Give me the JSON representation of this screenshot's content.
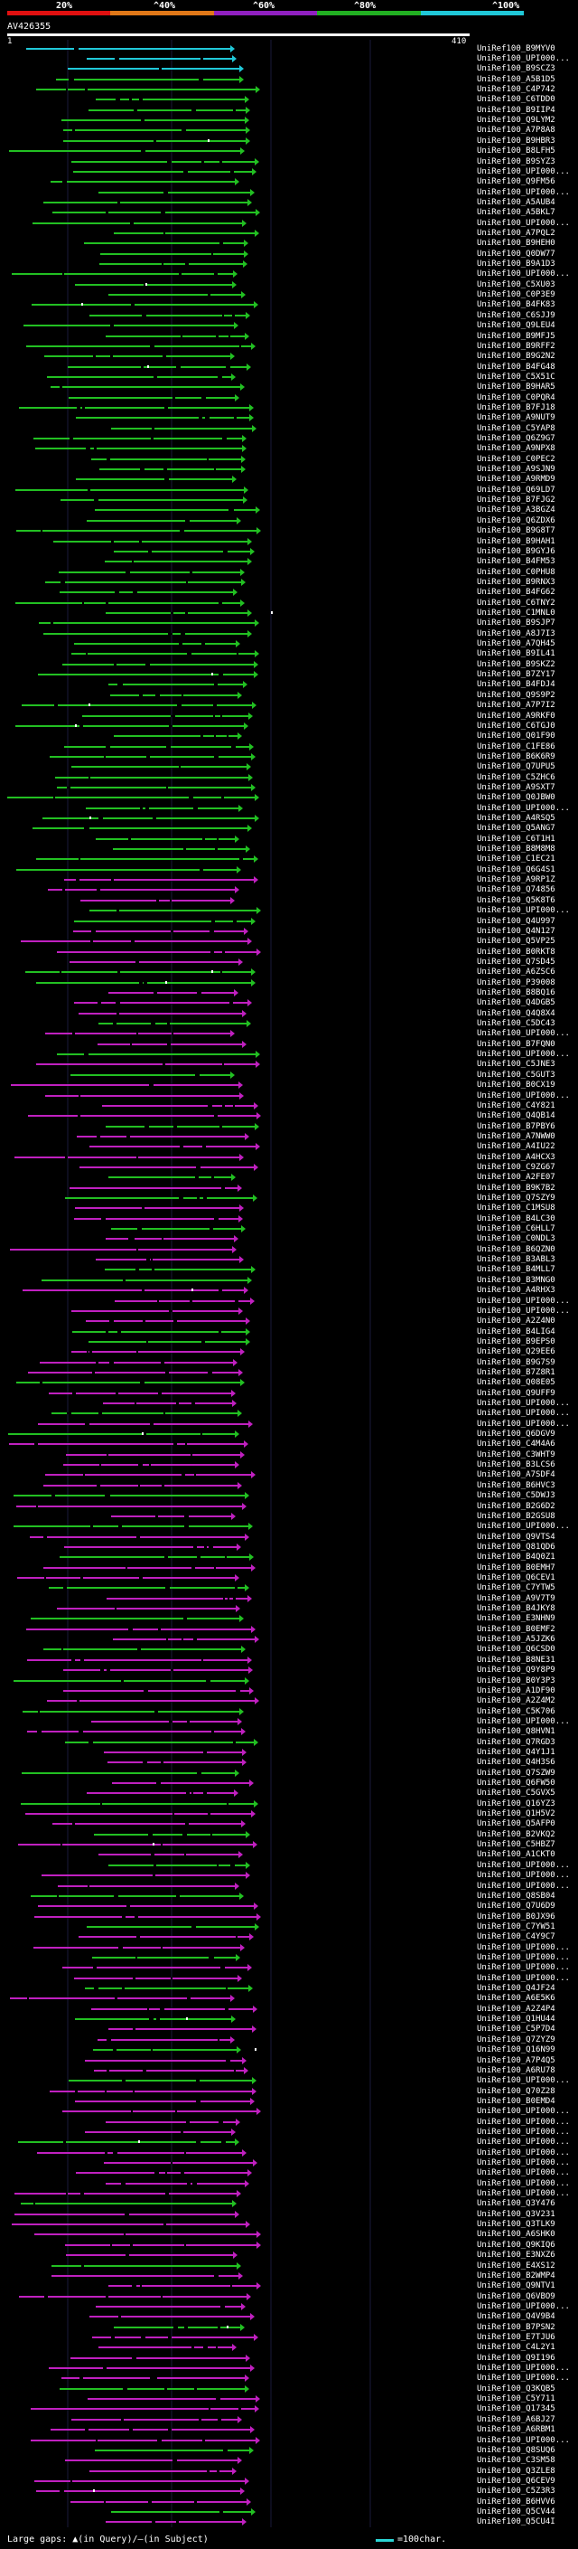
{
  "scale": {
    "labels": [
      "20%",
      "^40%",
      "^60%",
      "^80%",
      "^100%"
    ],
    "colors": [
      "#e01010",
      "#e07818",
      "#9020c0",
      "#22b022",
      "#20c8d8"
    ]
  },
  "query": {
    "id": "AV426355",
    "start": "1",
    "end": "410"
  },
  "colors": {
    "cyan": "#20c8d8",
    "green": "#22c022",
    "magenta": "#c020c0",
    "gap": "#000000"
  },
  "hits": [
    "UniRef100_B9MYV0",
    "UniRef100_UPI000...",
    "UniRef100_B9SCZ3",
    "UniRef100_A5B1D5",
    "UniRef100_C4P742",
    "UniRef100_C6TDD0",
    "UniRef100_B9IIP4",
    "UniRef100_Q9LYM2",
    "UniRef100_A7P8A8",
    "UniRef100_B9HBR3",
    "UniRef100_B8LFH5",
    "UniRef100_B9SYZ3",
    "UniRef100_UPI000...",
    "UniRef100_Q9FM56",
    "UniRef100_UPI000...",
    "UniRef100_A5AUB4",
    "UniRef100_A5BKL7",
    "UniRef100_UPI000...",
    "UniRef100_A7PQL2",
    "UniRef100_B9HEH0",
    "UniRef100_Q0DW77",
    "UniRef100_B9A1D3",
    "UniRef100_UPI000...",
    "UniRef100_C5XU03",
    "UniRef100_C0P3E9",
    "UniRef100_B4FK83",
    "UniRef100_C6SJJ9",
    "UniRef100_Q9LEU4",
    "UniRef100_B9MFJ5",
    "UniRef100_B9RFF2",
    "UniRef100_B9G2N2",
    "UniRef100_B4FG48",
    "UniRef100_C5X51C",
    "UniRef100_B9HAR5",
    "UniRef100_C0PQR4",
    "UniRef100_B7FJ18",
    "UniRef100_A9NUT9",
    "UniRef100_C5YAP8",
    "UniRef100_Q6Z9G7",
    "UniRef100_A9NPX8",
    "UniRef100_C0PEC2",
    "UniRef100_A9SJN9",
    "UniRef100_A9RMD9",
    "UniRef100_Q69LD7",
    "UniRef100_B7FJG2",
    "UniRef100_A3BGZ4",
    "UniRef100_Q6ZDX6",
    "UniRef100_B9G8T7",
    "UniRef100_B9HAH1",
    "UniRef100_B9GYJ6",
    "UniRef100_B4FM53",
    "UniRef100_C0PHU8",
    "UniRef100_B9RNX3",
    "UniRef100_B4FG62",
    "UniRef100_C6TNY2",
    "UniRef100_C1MNL0",
    "UniRef100_B9SJP7",
    "UniRef100_A8J7I3",
    "UniRef100_A7QH45",
    "UniRef100_B9IL41",
    "UniRef100_B9SKZ2",
    "UniRef100_B7ZY17",
    "UniRef100_B4FDJ4",
    "UniRef100_Q9S9P2",
    "UniRef100_A7P7I2",
    "UniRef100_A9RKF0",
    "UniRef100_C6TGJ0",
    "UniRef100_Q01F90",
    "UniRef100_C1FE86",
    "UniRef100_B6K6R9",
    "UniRef100_Q7UPU5",
    "UniRef100_C5ZHC6",
    "UniRef100_A9SXT7",
    "UniRef100_Q0JBW0",
    "UniRef100_UPI000...",
    "UniRef100_A4RSQ5",
    "UniRef100_Q5ANG7",
    "UniRef100_C6T1H1",
    "UniRef100_B8M8M8",
    "UniRef100_C1EC21",
    "UniRef100_Q6G4S1",
    "UniRef100_A9RP1Z",
    "UniRef100_Q74856",
    "UniRef100_Q5K8T6",
    "UniRef100_UPI000...",
    "UniRef100_Q4U997",
    "UniRef100_Q4N127",
    "UniRef100_Q5VP25",
    "UniRef100_B0RKT8",
    "UniRef100_Q7SD45",
    "UniRef100_A6ZSC6",
    "UniRef100_P39008",
    "UniRef100_B8BQ16",
    "UniRef100_Q4DGB5",
    "UniRef100_Q4Q8X4",
    "UniRef100_C5DC43",
    "UniRef100_UPI000...",
    "UniRef100_B7FQN0",
    "UniRef100_UPI000...",
    "UniRef100_C5JNE3",
    "UniRef100_C5GUT3",
    "UniRef100_B0CX19",
    "UniRef100_UPI000...",
    "UniRef100_C4Y821",
    "UniRef100_Q4QB14",
    "UniRef100_B7PBY6",
    "UniRef100_A7NWW0",
    "UniRef100_A4IU22",
    "UniRef100_A4HCX3",
    "UniRef100_C9ZG67",
    "UniRef100_A2FE07",
    "UniRef100_B9K7B2",
    "UniRef100_Q7SZY9",
    "UniRef100_C1MSU8",
    "UniRef100_B4LC30",
    "UniRef100_C6HLL7",
    "UniRef100_C0NDL3",
    "UniRef100_B6QZN0",
    "UniRef100_B3ABL3",
    "UniRef100_B4MLL7",
    "UniRef100_B3MNG0",
    "UniRef100_A4RHX3",
    "UniRef100_UPI000...",
    "UniRef100_UPI000...",
    "UniRef100_A2Z4N0",
    "UniRef100_B4LIG4",
    "UniRef100_B9EPS0",
    "UniRef100_Q29EE6",
    "UniRef100_B9G7S9",
    "UniRef100_B7Z8R1",
    "UniRef100_Q08E05",
    "UniRef100_Q9UFF9",
    "UniRef100_UPI000...",
    "UniRef100_UPI000...",
    "UniRef100_UPI000...",
    "UniRef100_Q6DGV9",
    "UniRef100_C4M4A6",
    "UniRef100_C3WHT9",
    "UniRef100_B3LCS6",
    "UniRef100_A7SDF4",
    "UniRef100_B6HVC3",
    "UniRef100_C5DWJ3",
    "UniRef100_B2G6D2",
    "UniRef100_B2GSU8",
    "UniRef100_UPI000...",
    "UniRef100_Q9VTS4",
    "UniRef100_Q81QD6",
    "UniRef100_B4Q0Z1",
    "UniRef100_B0EMH7",
    "UniRef100_Q6CEV1",
    "UniRef100_C7YTW5",
    "UniRef100_A9V7T9",
    "UniRef100_B4JKY8",
    "UniRef100_E3NHN9",
    "UniRef100_B0EMF2",
    "UniRef100_A5JZK6",
    "UniRef100_Q6CSD0",
    "UniRef100_B8NE31",
    "UniRef100_Q9Y8P9",
    "UniRef100_B0Y3P3",
    "UniRef100_A1DF90",
    "UniRef100_A2Z4M2",
    "UniRef100_C5K706",
    "UniRef100_UPI000...",
    "UniRef100_Q8HVN1",
    "UniRef100_Q7RGD3",
    "UniRef100_Q4Y1J1",
    "UniRef100_Q4H3S6",
    "UniRef100_Q7SZW9",
    "UniRef100_Q6FW50",
    "UniRef100_C5GVX5",
    "UniRef100_Q16YZ3",
    "UniRef100_Q1H5V2",
    "UniRef100_Q5AFP0",
    "UniRef100_B2VKQ2",
    "UniRef100_C5HBZ7",
    "UniRef100_A1CKT0",
    "UniRef100_UPI000...",
    "UniRef100_UPI000...",
    "UniRef100_UPI000...",
    "UniRef100_Q8SB04",
    "UniRef100_Q7U6D9",
    "UniRef100_B0JX96",
    "UniRef100_C7YW51",
    "UniRef100_C4Y9C7",
    "UniRef100_UPI000...",
    "UniRef100_UPI000...",
    "UniRef100_UPI000...",
    "UniRef100_UPI000...",
    "UniRef100_Q4JF24",
    "UniRef100_A6E5K6",
    "UniRef100_A2Z4P4",
    "UniRef100_Q1HU44",
    "UniRef100_C5P7D4",
    "UniRef100_Q7ZYZ9",
    "UniRef100_Q16N99",
    "UniRef100_A7P4Q5",
    "UniRef100_A6RU78",
    "UniRef100_UPI000...",
    "UniRef100_Q70Z28",
    "UniRef100_B0EMD4",
    "UniRef100_UPI000...",
    "UniRef100_UPI000...",
    "UniRef100_UPI000...",
    "UniRef100_UPI000...",
    "UniRef100_UPI000...",
    "UniRef100_UPI000...",
    "UniRef100_UPI000...",
    "UniRef100_UPI000...",
    "UniRef100_UPI000...",
    "UniRef100_Q3Y476",
    "UniRef100_Q3V231",
    "UniRef100_Q3TLK9",
    "UniRef100_A6SHK0",
    "UniRef100_Q9KIQ6",
    "UniRef100_E3NXZ6",
    "UniRef100_E4XS12",
    "UniRef100_B2WMP4",
    "UniRef100_Q9NTV1",
    "UniRef100_Q6VBO9",
    "UniRef100_UPI000...",
    "UniRef100_Q4V9B4",
    "UniRef100_B7PSN2",
    "UniRef100_E7TJU6",
    "UniRef100_C4L2Y1",
    "UniRef100_Q9I196",
    "UniRef100_UPI000...",
    "UniRef100_UPI000...",
    "UniRef100_Q3KQB5",
    "UniRef100_C5Y711",
    "UniRef100_Q17345",
    "UniRef100_A6BJ27",
    "UniRef100_A6RBM1",
    "UniRef100_UPI000...",
    "UniRef100_Q8SUQ6",
    "UniRef100_C3SM58",
    "UniRef100_Q3ZLE8",
    "UniRef100_Q6CEV9",
    "UniRef100_C5Z3R3",
    "UniRef100_B6HVV6",
    "UniRef100_Q5CV44",
    "UniRef100_Q5CU4I"
  ],
  "footer": {
    "left": "Large gaps:  ▲(in Query)/—(in Subject)",
    "right": "=100char."
  }
}
